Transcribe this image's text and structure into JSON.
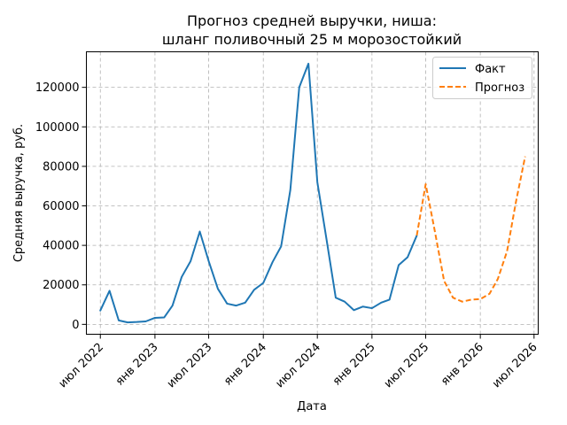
{
  "chart_data": {
    "type": "line",
    "title_line1": "Прогноз средней выручки, ниша:",
    "title_line2": "шланг поливочный 25 м морозостойкий",
    "xlabel": "Дата",
    "ylabel": "Средняя выручка, руб.",
    "ylim": [
      -5000,
      138000
    ],
    "yticks": [
      0,
      20000,
      40000,
      60000,
      80000,
      100000,
      120000
    ],
    "xlim": [
      "2022-05-15",
      "2026-07-15"
    ],
    "xticks": [
      {
        "date": "2022-07-01",
        "label": "июл 2022"
      },
      {
        "date": "2023-01-01",
        "label": "янв 2023"
      },
      {
        "date": "2023-07-01",
        "label": "июл 2023"
      },
      {
        "date": "2024-01-01",
        "label": "янв 2024"
      },
      {
        "date": "2024-07-01",
        "label": "июл 2024"
      },
      {
        "date": "2025-01-01",
        "label": "янв 2025"
      },
      {
        "date": "2025-07-01",
        "label": "июл 2025"
      },
      {
        "date": "2026-01-01",
        "label": "янв 2026"
      },
      {
        "date": "2026-07-01",
        "label": "июл 2026"
      }
    ],
    "grid": true,
    "legend_position": "top-right",
    "series": [
      {
        "name": "Факт",
        "color": "#1f77b4",
        "style": "solid",
        "points": [
          [
            "2022-07-01",
            7000
          ],
          [
            "2022-08-01",
            17000
          ],
          [
            "2022-09-01",
            2000
          ],
          [
            "2022-10-01",
            1000
          ],
          [
            "2022-11-01",
            1200
          ],
          [
            "2022-12-01",
            1500
          ],
          [
            "2023-01-01",
            3300
          ],
          [
            "2023-02-01",
            3500
          ],
          [
            "2023-03-01",
            9500
          ],
          [
            "2023-04-01",
            24000
          ],
          [
            "2023-05-01",
            32000
          ],
          [
            "2023-06-01",
            47000
          ],
          [
            "2023-07-01",
            32000
          ],
          [
            "2023-08-01",
            18000
          ],
          [
            "2023-09-01",
            10500
          ],
          [
            "2023-10-01",
            9500
          ],
          [
            "2023-11-01",
            11000
          ],
          [
            "2023-12-01",
            17500
          ],
          [
            "2024-01-01",
            21000
          ],
          [
            "2024-02-01",
            31500
          ],
          [
            "2024-03-01",
            39500
          ],
          [
            "2024-04-01",
            68000
          ],
          [
            "2024-05-01",
            120000
          ],
          [
            "2024-06-01",
            132000
          ],
          [
            "2024-07-01",
            72000
          ],
          [
            "2024-08-01",
            43000
          ],
          [
            "2024-09-01",
            13500
          ],
          [
            "2024-10-01",
            11500
          ],
          [
            "2024-11-01",
            7200
          ],
          [
            "2024-12-01",
            9000
          ],
          [
            "2025-01-01",
            8200
          ],
          [
            "2025-02-01",
            11000
          ],
          [
            "2025-03-01",
            12500
          ],
          [
            "2025-04-01",
            30000
          ],
          [
            "2025-05-01",
            34000
          ],
          [
            "2025-06-01",
            45000
          ]
        ]
      },
      {
        "name": "Прогноз",
        "color": "#ff7f0e",
        "style": "dashed",
        "points": [
          [
            "2025-06-01",
            45000
          ],
          [
            "2025-07-01",
            71000
          ],
          [
            "2025-08-01",
            47000
          ],
          [
            "2025-09-01",
            22000
          ],
          [
            "2025-10-01",
            13500
          ],
          [
            "2025-11-01",
            11500
          ],
          [
            "2025-12-01",
            12500
          ],
          [
            "2026-01-01",
            12800
          ],
          [
            "2026-02-01",
            15500
          ],
          [
            "2026-03-01",
            23000
          ],
          [
            "2026-04-01",
            37000
          ],
          [
            "2026-05-01",
            62000
          ],
          [
            "2026-06-01",
            85000
          ]
        ]
      }
    ]
  }
}
